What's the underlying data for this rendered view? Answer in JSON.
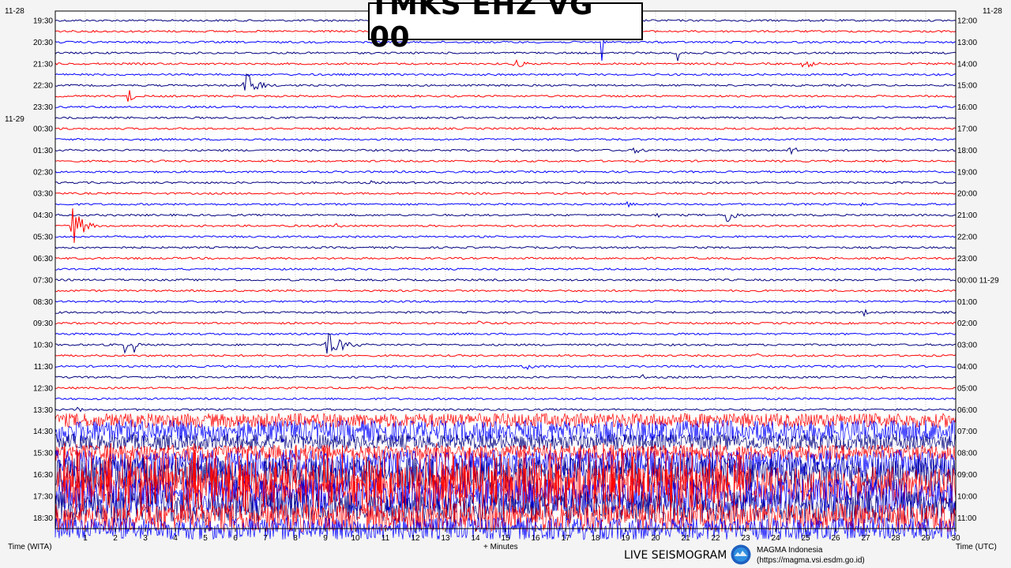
{
  "title": "TMKS EHZ VG 00",
  "footer": {
    "left_axis_label": "Time (WITA)",
    "x_axis_label": "+ Minutes",
    "right_axis_label": "Time (UTC)",
    "brand": "LIVE SEISMOGRAM",
    "org_name": "MAGMA Indonesia",
    "org_url": "(https://magma.vsi.esdm.go.id)"
  },
  "colors": {
    "trace_cycle": [
      "#00007f",
      "#ff0000",
      "#0000ff"
    ],
    "grid": "#9a9a9a",
    "background": "#ffffff"
  },
  "chart_data": {
    "type": "line",
    "x_ticks": [
      1,
      2,
      3,
      4,
      5,
      6,
      7,
      8,
      9,
      10,
      11,
      12,
      13,
      14,
      15,
      16,
      17,
      18,
      19,
      20,
      21,
      22,
      23,
      24,
      25,
      26,
      27,
      28,
      29,
      30
    ],
    "xlim": [
      0,
      30
    ],
    "row_count": 48,
    "left_dates": [
      {
        "label": "11-28",
        "row": 0
      },
      {
        "label": "11-29",
        "row": 10
      }
    ],
    "right_dates": [
      {
        "label": "11-28",
        "row": 0
      }
    ],
    "left_times": [
      "19:30",
      "20:30",
      "21:30",
      "22:30",
      "23:30",
      "00:30",
      "01:30",
      "02:30",
      "03:30",
      "04:30",
      "05:30",
      "06:30",
      "07:30",
      "08:30",
      "09:30",
      "10:30",
      "11:30",
      "12:30",
      "13:30",
      "14:30",
      "15:30",
      "16:30",
      "17:30",
      "18:30"
    ],
    "right_times": [
      "12:00",
      "13:00",
      "14:00",
      "15:00",
      "16:00",
      "17:00",
      "18:00",
      "19:00",
      "20:00",
      "21:00",
      "22:00",
      "23:00",
      "00:00 11-29",
      "01:00",
      "02:00",
      "03:00",
      "04:00",
      "05:00",
      "06:00",
      "07:00",
      "08:00",
      "09:00",
      "10:00",
      "11:00"
    ],
    "events": [
      {
        "row": 2,
        "minute": 3.0,
        "amp": 26,
        "dur": 0.1
      },
      {
        "row": 2,
        "minute": 18.2,
        "amp": 40,
        "dur": 0.1
      },
      {
        "row": 3,
        "minute": 20.7,
        "amp": 45,
        "dur": 0.1
      },
      {
        "row": 4,
        "minute": 15.2,
        "amp": 6,
        "dur": 1.2
      },
      {
        "row": 4,
        "minute": 24.8,
        "amp": 6,
        "dur": 1.4
      },
      {
        "row": 6,
        "minute": 6.2,
        "amp": 18,
        "dur": 1.2
      },
      {
        "row": 7,
        "minute": 2.4,
        "amp": 14,
        "dur": 0.4
      },
      {
        "row": 12,
        "minute": 19.2,
        "amp": 5,
        "dur": 1.2
      },
      {
        "row": 12,
        "minute": 24.4,
        "amp": 12,
        "dur": 0.5
      },
      {
        "row": 15,
        "minute": 10.5,
        "amp": 4,
        "dur": 0.4
      },
      {
        "row": 17,
        "minute": 19.0,
        "amp": 5,
        "dur": 0.6
      },
      {
        "row": 17,
        "minute": 26.8,
        "amp": 6,
        "dur": 0.4
      },
      {
        "row": 18,
        "minute": 22.3,
        "amp": 14,
        "dur": 0.8
      },
      {
        "row": 18,
        "minute": 20.0,
        "amp": 6,
        "dur": 0.3
      },
      {
        "row": 19,
        "minute": 9.3,
        "amp": 10,
        "dur": 0.4
      },
      {
        "row": 19,
        "minute": 0.5,
        "amp": 28,
        "dur": 0.9
      },
      {
        "row": 27,
        "minute": 26.9,
        "amp": 6,
        "dur": 0.6
      },
      {
        "row": 28,
        "minute": 14.0,
        "amp": 5,
        "dur": 0.8
      },
      {
        "row": 30,
        "minute": 8.9,
        "amp": 16,
        "dur": 1.6
      },
      {
        "row": 30,
        "minute": 2.6,
        "amp": 14,
        "dur": 0.3
      },
      {
        "row": 30,
        "minute": 2.3,
        "amp": 40,
        "dur": 0.1
      },
      {
        "row": 31,
        "minute": 19.5,
        "amp": 44,
        "dur": 0.1
      },
      {
        "row": 31,
        "minute": 23.3,
        "amp": 7,
        "dur": 0.4
      },
      {
        "row": 32,
        "minute": 15.5,
        "amp": 4,
        "dur": 1.8
      },
      {
        "row": 33,
        "minute": 19.5,
        "amp": 4,
        "dur": 0.6
      },
      {
        "row": 36,
        "minute": 0.6,
        "amp": 6,
        "dur": 0.6
      }
    ],
    "noise_rows": [
      {
        "row": 37,
        "amp": 9
      },
      {
        "row": 38,
        "amp": 14
      },
      {
        "row": 39,
        "amp": 10
      },
      {
        "row": 40,
        "amp": 10
      },
      {
        "row": 41,
        "amp": 18
      },
      {
        "row": 42,
        "amp": 22
      },
      {
        "row": 43,
        "amp": 24
      },
      {
        "row": 44,
        "amp": 22
      },
      {
        "row": 45,
        "amp": 20
      },
      {
        "row": 46,
        "amp": 18
      },
      {
        "row": 47,
        "amp": 14
      }
    ]
  }
}
